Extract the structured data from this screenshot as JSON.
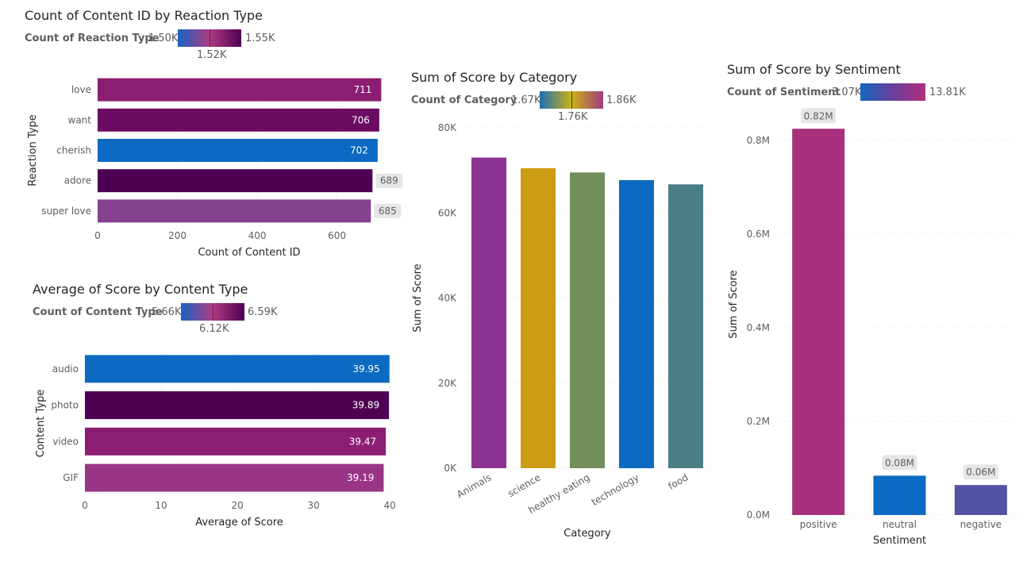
{
  "colors": {
    "purple_light": "#a23284",
    "purple_mid": "#8b1e72",
    "purple_deep": "#4d0152",
    "purple_dark": "#6c0b62",
    "violet": "#86418f",
    "blue": "#0d6ac2",
    "gold": "#cc9c14",
    "green": "#738f5b",
    "teal": "#4a7e86",
    "magenta": "#a72f7c",
    "indigo": "#5452a3",
    "animals_purple": "#8c3292"
  },
  "chart_data": [
    {
      "id": "reaction",
      "type": "bar",
      "orientation": "horizontal",
      "title": "Count of Content ID by Reaction Type",
      "legend": {
        "name": "Count of Reaction Type",
        "min": "1.50K",
        "max": "1.55K",
        "mid": "1.52K"
      },
      "categories": [
        "love",
        "want",
        "cherish",
        "adore",
        "super love"
      ],
      "values": [
        711,
        706,
        702,
        689,
        685
      ],
      "labels": [
        "711",
        "706",
        "702",
        "689",
        "685"
      ],
      "label_inside": [
        true,
        true,
        true,
        false,
        false
      ],
      "bar_colors": [
        "#8b1e72",
        "#6c0b62",
        "#0d6ac2",
        "#4d0152",
        "#86418f"
      ],
      "xlabel": "Count of Content ID",
      "ylabel": "Reaction Type",
      "xlim": [
        0,
        760
      ],
      "xticks": [
        0,
        200,
        400,
        600
      ],
      "xtick_labels": [
        "0",
        "200",
        "400",
        "600"
      ],
      "grid": true
    },
    {
      "id": "content",
      "type": "bar",
      "orientation": "horizontal",
      "title": "Average of Score by Content Type",
      "legend": {
        "name": "Count of Content Type",
        "min": "5.66K",
        "max": "6.59K",
        "mid": "6.12K"
      },
      "categories": [
        "audio",
        "photo",
        "video",
        "GIF"
      ],
      "values": [
        39.95,
        39.89,
        39.47,
        39.19
      ],
      "labels": [
        "39.95",
        "39.89",
        "39.47",
        "39.19"
      ],
      "label_inside": [
        true,
        true,
        true,
        true
      ],
      "bar_colors": [
        "#0d6ac2",
        "#4d0152",
        "#8b1e72",
        "#9a3585"
      ],
      "xlabel": "Average of Score",
      "ylabel": "Content Type",
      "xlim": [
        0,
        40.5
      ],
      "xticks": [
        0,
        10,
        20,
        30,
        40
      ],
      "xtick_labels": [
        "0",
        "10",
        "20",
        "30",
        "40"
      ],
      "grid": true
    },
    {
      "id": "category",
      "type": "bar",
      "orientation": "vertical",
      "title": "Sum of Score by Category",
      "legend": {
        "name": "Count of Category",
        "min": "1.67K",
        "max": "1.86K",
        "mid": "1.76K"
      },
      "categories": [
        "Animals",
        "science",
        "healthy eating",
        "technology",
        "food"
      ],
      "values": [
        73000,
        70500,
        69500,
        67700,
        66700
      ],
      "bar_colors": [
        "#8c3292",
        "#cc9c14",
        "#738f5b",
        "#0d6ac2",
        "#4a7e86"
      ],
      "xlabel": "Category",
      "ylabel": "Sum of Score",
      "ylim": [
        0,
        80000
      ],
      "yticks": [
        0,
        20000,
        40000,
        60000,
        80000
      ],
      "ytick_labels": [
        "0K",
        "20K",
        "40K",
        "60K",
        "80K"
      ],
      "grid": true
    },
    {
      "id": "sentiment",
      "type": "bar",
      "orientation": "vertical",
      "title": "Sum of Score by Sentiment",
      "legend": {
        "name": "Count of Sentiment",
        "min": "3.07K",
        "max": "13.81K"
      },
      "categories": [
        "positive",
        "neutral",
        "negative"
      ],
      "values": [
        825000,
        84000,
        64000
      ],
      "labels": [
        "0.82M",
        "0.08M",
        "0.06M"
      ],
      "bar_colors": [
        "#a72f7c",
        "#0d6ac2",
        "#5452a3"
      ],
      "xlabel": "Sentiment",
      "ylabel": "Sum of Score",
      "ylim": [
        0,
        900000
      ],
      "yticks": [
        0,
        200000,
        400000,
        600000,
        800000
      ],
      "ytick_labels": [
        "0.0M",
        "0.2M",
        "0.4M",
        "0.6M",
        "0.8M"
      ],
      "grid": true
    }
  ]
}
